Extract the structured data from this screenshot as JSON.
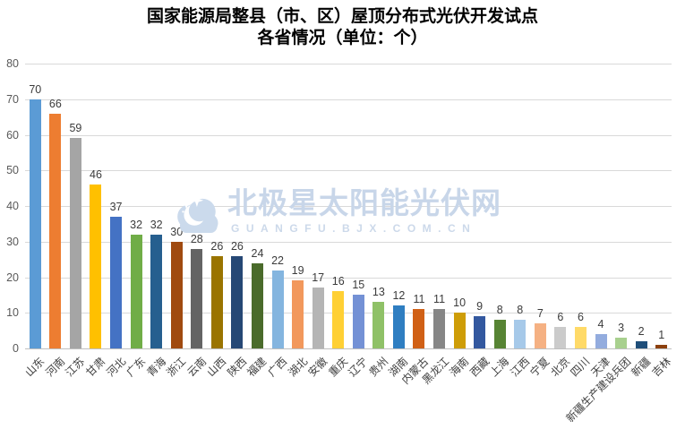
{
  "title": {
    "line1": "国家能源局整县（市、区）屋顶分布式光伏开发试点",
    "line2": "各省情况（单位：个）"
  },
  "watermark": {
    "cn": "北极星太阳能光伏网",
    "en": "GUANGFU.BJX.COM.CN"
  },
  "chart_data": {
    "type": "bar",
    "title": "国家能源局整县（市、区）屋顶分布式光伏开发试点 各省情况（单位：个）",
    "categories": [
      "山东",
      "河南",
      "江苏",
      "甘肃",
      "河北",
      "广东",
      "青海",
      "浙江",
      "云南",
      "山西",
      "陕西",
      "福建",
      "广西",
      "湖北",
      "安徽",
      "重庆",
      "辽宁",
      "贵州",
      "湖南",
      "内蒙古",
      "黑龙江",
      "海南",
      "西藏",
      "上海",
      "江西",
      "宁夏",
      "北京",
      "四川",
      "天津",
      "新疆生产建设兵团",
      "新疆",
      "吉林"
    ],
    "values": [
      70,
      66,
      59,
      46,
      37,
      32,
      32,
      30,
      28,
      26,
      26,
      24,
      22,
      19,
      17,
      16,
      15,
      13,
      12,
      11,
      11,
      10,
      9,
      8,
      8,
      7,
      6,
      6,
      4,
      3,
      2,
      1
    ],
    "bar_colors": [
      "#5B9BD5",
      "#ED7D31",
      "#A5A5A5",
      "#FFC000",
      "#4472C4",
      "#70AD47",
      "#265F8F",
      "#A04A10",
      "#646464",
      "#9A7400",
      "#264875",
      "#4A6B2B",
      "#84B5DF",
      "#F2985C",
      "#B5B5B5",
      "#FFD034",
      "#7491D5",
      "#8FC167",
      "#2F7EC1",
      "#D06016",
      "#868686",
      "#CE9D07",
      "#33589F",
      "#578434",
      "#A6C9E9",
      "#F5B183",
      "#CBCBCB",
      "#FFDA68",
      "#93ACDE",
      "#A8D08E",
      "#1F4E79",
      "#8C400E"
    ],
    "xlabel": "",
    "ylabel": "",
    "ylim": [
      0,
      80
    ],
    "yticks": [
      0,
      10,
      20,
      30,
      40,
      50,
      60,
      70,
      80
    ],
    "grid": "horizontal",
    "value_labels": true,
    "legend": "none"
  },
  "colors": {
    "gridline": "#D9D9D9",
    "axis_line": "#BFBFBF",
    "tick_label": "#595959",
    "value_label": "#3B3B3B",
    "watermark": "#C8D6E9",
    "title": "#000000",
    "background": "#FFFFFF"
  }
}
